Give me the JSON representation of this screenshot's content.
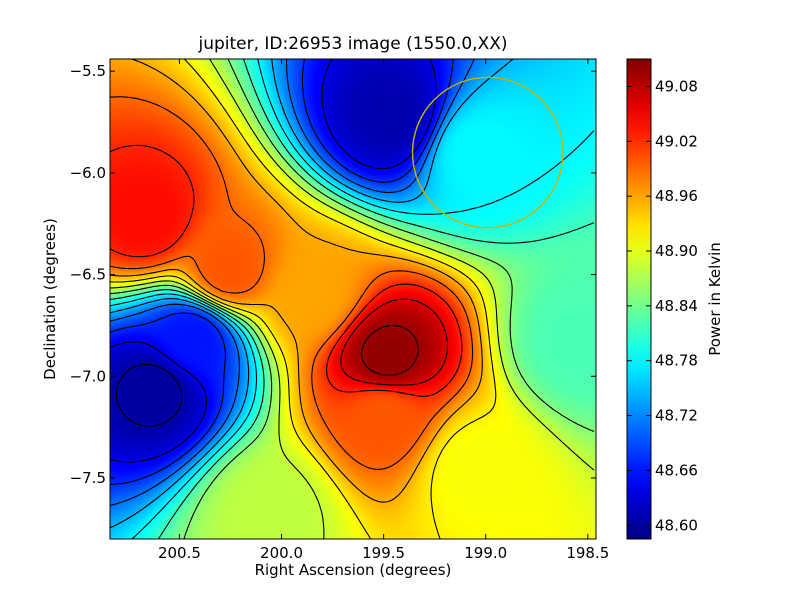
{
  "chart_data": {
    "type": "heatmap",
    "title": "jupiter, ID:26953 image (1550.0,XX)",
    "xlabel": "Right Ascension (degrees)",
    "ylabel": "Declination (degrees)",
    "colorbar_label": "Power in Kelvin",
    "colormap": "jet",
    "contours": true,
    "xlim": [
      200.84,
      198.46
    ],
    "ylim": [
      -7.8,
      -5.44
    ],
    "x_ticks": [
      {
        "value": 200.5,
        "label": "200.5"
      },
      {
        "value": 200.0,
        "label": "200.0"
      },
      {
        "value": 199.5,
        "label": "199.5"
      },
      {
        "value": 199.0,
        "label": "199.0"
      },
      {
        "value": 198.5,
        "label": "198.5"
      }
    ],
    "y_ticks": [
      {
        "value": -5.5,
        "label": "−5.5"
      },
      {
        "value": -6.0,
        "label": "−6.0"
      },
      {
        "value": -6.5,
        "label": "−6.5"
      },
      {
        "value": -7.0,
        "label": "−7.0"
      },
      {
        "value": -7.5,
        "label": "−7.5"
      }
    ],
    "colorbar_range": [
      48.585,
      49.11
    ],
    "colorbar_ticks": [
      {
        "value": 48.6,
        "label": "48.60"
      },
      {
        "value": 48.66,
        "label": "48.66"
      },
      {
        "value": 48.72,
        "label": "48.72"
      },
      {
        "value": 48.78,
        "label": "48.78"
      },
      {
        "value": 48.84,
        "label": "48.84"
      },
      {
        "value": 48.9,
        "label": "48.90"
      },
      {
        "value": 48.96,
        "label": "48.96"
      },
      {
        "value": 49.02,
        "label": "49.02"
      },
      {
        "value": 49.08,
        "label": "49.08"
      }
    ],
    "field_features": [
      {
        "ra": 200.66,
        "dec": -6.22,
        "value": 49.04
      },
      {
        "ra": 200.26,
        "dec": -6.47,
        "value": 49.0
      },
      {
        "ra": 200.62,
        "dec": -7.06,
        "value": 48.6
      },
      {
        "ra": 200.44,
        "dec": -6.82,
        "value": 48.66
      },
      {
        "ra": 199.45,
        "dec": -5.72,
        "value": 48.61
      },
      {
        "ra": 199.05,
        "dec": -5.9,
        "value": 48.78
      },
      {
        "ra": 199.48,
        "dec": -6.9,
        "value": 49.1
      },
      {
        "ra": 199.5,
        "dec": -7.2,
        "value": 49.0
      },
      {
        "ra": 198.55,
        "dec": -6.83,
        "value": 48.82
      },
      {
        "ra": 199.05,
        "dec": -7.45,
        "value": 48.91
      },
      {
        "ra": 200.05,
        "dec": -7.65,
        "value": 48.88
      },
      {
        "ra": 199.85,
        "dec": -6.6,
        "value": 48.96
      }
    ],
    "circle": {
      "ra": 198.99,
      "dec": -5.9,
      "radius_deg": 0.37,
      "color": "#c8b400"
    }
  }
}
